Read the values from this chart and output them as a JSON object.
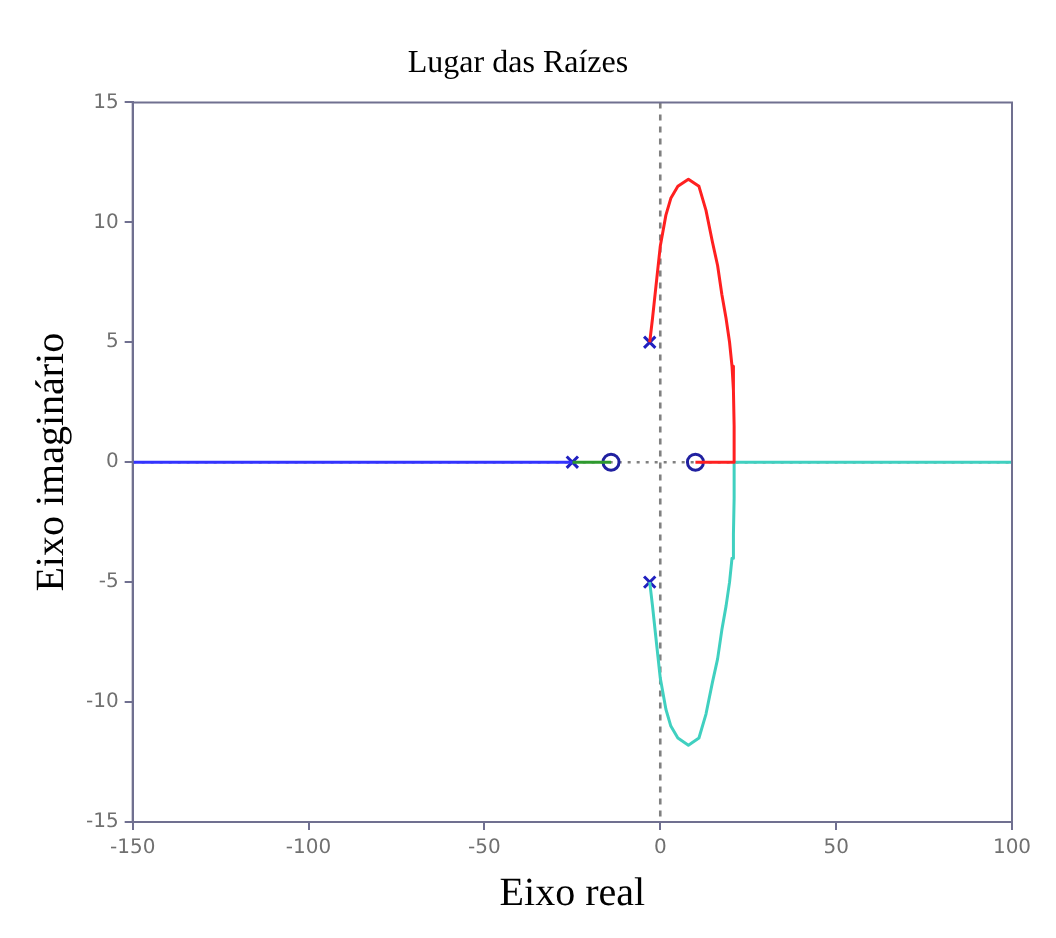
{
  "chart_data": {
    "type": "line",
    "title": "Lugar das Raízes",
    "xlabel": "Eixo real",
    "ylabel": "Eixo imaginário",
    "xlim": [
      -150,
      100
    ],
    "xticks": [
      -150,
      -100,
      -50,
      0,
      50,
      100
    ],
    "ylim": [
      -15,
      15
    ],
    "yticks": [
      -15,
      -10,
      -5,
      0,
      5,
      10,
      15
    ],
    "grid": false,
    "legend": false,
    "marker": "none",
    "line_style": "solid",
    "series": [
      {
        "color": "#3333ff",
        "x": [
          -150,
          -25
        ],
        "values": [
          0,
          0
        ]
      },
      {
        "color": "#2e9a2e",
        "x": [
          -25,
          -14
        ],
        "values": [
          0,
          0
        ]
      },
      {
        "color": "#ff2020",
        "x": [
          -3,
          -2.2,
          -1.4,
          0,
          1.6,
          3,
          5,
          8,
          11,
          13,
          14.8,
          16.3,
          17.5,
          18.7,
          19.7,
          20.4,
          20.8,
          21,
          21,
          10
        ],
        "values": [
          5,
          6,
          7.1,
          9,
          10.3,
          11,
          11.5,
          11.8,
          11.5,
          10.5,
          9.2,
          8.2,
          7,
          6,
          5,
          4,
          3,
          1.5,
          0,
          0
        ]
      },
      {
        "color": "#40d0c0",
        "x": [
          -3,
          -2.2,
          -1.4,
          0,
          1.6,
          3,
          5,
          8,
          11,
          13,
          14.8,
          16.3,
          17.5,
          18.7,
          19.7,
          20.4,
          20.8,
          21,
          21,
          100
        ],
        "values": [
          -5,
          -6,
          -7.1,
          -9,
          -10.3,
          -11,
          -11.5,
          -11.8,
          -11.5,
          -10.5,
          -9.2,
          -8.2,
          -7,
          -6,
          -5,
          -4,
          -3,
          -1.5,
          0,
          0
        ]
      },
      {
        "type": "scatter",
        "marker": "cross",
        "color": "#2020c0",
        "x": [
          -25,
          -3,
          -3
        ],
        "values": [
          0,
          5,
          -5
        ]
      },
      {
        "type": "scatter",
        "marker": "circle",
        "color": "#2020a0",
        "x": [
          -14,
          10
        ],
        "values": [
          0,
          0
        ]
      }
    ],
    "ref_lines": [
      {
        "axis": "x",
        "value": 0,
        "color": "#808080",
        "line_style": "dashed"
      },
      {
        "axis": "y",
        "value": 0,
        "color": "#808080",
        "line_style": "dotted"
      }
    ]
  }
}
